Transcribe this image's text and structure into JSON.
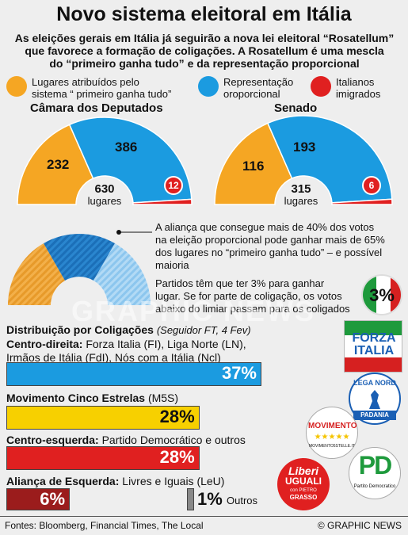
{
  "title": "Novo sistema eleitoral em Itália",
  "subtitle_lines": [
    "As eleições gerais em Itália já seguirão a nova lei eleitoral “Rosatellum”",
    "que favorece a formação de coligações. A Rosatellum é uma mescla",
    "do “primeiro ganha tudo” e da representação proporcional"
  ],
  "legend": [
    {
      "line1": "Lugares atribuídos pelo",
      "line2": "sistema “ primeiro ganha tudo”",
      "color": "#f5a623"
    },
    {
      "line1": "Representação",
      "line2": "oroporcional",
      "color": "#1b9be0"
    },
    {
      "line1": "Italianos",
      "line2": "imigrados",
      "color": "#e02020"
    }
  ],
  "chart_data": [
    {
      "type": "pie",
      "title": "Câmara dos Deputados",
      "categories": [
        "Lugares atribuídos pelo sistema “ primeiro ganha tudo”",
        "Representação oroporcional",
        "Italianos imigrados"
      ],
      "values": [
        232,
        386,
        12
      ],
      "total": "630",
      "total_unit": "lugares"
    },
    {
      "type": "pie",
      "title": "Senado",
      "categories": [
        "Lugares atribuídos pelo sistema “ primeiro ganha tudo”",
        "Representação oroporcional",
        "Italianos imigrados"
      ],
      "values": [
        116,
        193,
        6
      ],
      "total": "315",
      "total_unit": "lugares"
    },
    {
      "type": "bar",
      "title": "Distribuição por Coligações",
      "source": "(Seguidor FT, 4 Fev)",
      "categories": [
        "Centro-direita",
        "Movimento Cinco Estrelas",
        "Centro-esquerda",
        "Aliança de Esquerda",
        "Outros"
      ],
      "values": [
        37,
        28,
        28,
        6,
        1
      ],
      "value_labels": [
        "37%",
        "28%",
        "28%",
        "6%",
        "1%"
      ],
      "colors": [
        "#1b9be0",
        "#f7d000",
        "#e02020",
        "#9b1c1c",
        "#888888"
      ]
    }
  ],
  "notes": {
    "note1_lines": [
      "A aliança que consegue mais de 40% dos votos",
      "na eleição proporcional pode ganhar mais de 65%",
      "dos lugares no “primeiro ganha tudo” – e possível",
      "maioria"
    ],
    "note2_lines": [
      "Partidos têm que ter 3% para ganhar",
      "lugar. Se for parte de coligação, os votos",
      "abaixo do limiar passam para os coligados"
    ],
    "threshold_badge": "3%"
  },
  "coalitions": {
    "heading": "Distribuição por Coligações",
    "source": "(Seguidor FT, 4 Fev)",
    "centro_direita": {
      "name": "Centro-direita:",
      "line1_rest": "Forza Italia (FI), Liga Norte (LN),",
      "line2": "Irmãos de Itália (FdI), Nós com a Itália (Ncl)"
    },
    "m5s": {
      "name": "Movimento Cinco Estrelas",
      "rest": "(M5S)"
    },
    "centro_esquerda": {
      "name": "Centro-esquerda:",
      "rest": "Partido Democrático e outros"
    },
    "alianca": {
      "name": "Aliança de Esquerda:",
      "rest": "Livres e Iguais (LeU)"
    },
    "outros_label": "Outros"
  },
  "logos": {
    "forza_italia": [
      "FORZA",
      "ITALIA"
    ],
    "lega_nord": [
      "LEGA NORD",
      "PADANIA"
    ],
    "movimento": [
      "MOVIMENTO",
      "MOVIMENTO5STELLE.IT"
    ],
    "pd": [
      "PD",
      "Partito Democratico"
    ],
    "liberi_uguali": [
      "Liberi",
      "UGUALI",
      "con PIETRO",
      "GRASSO"
    ]
  },
  "footer": {
    "sources": "Fontes: Bloomberg, Financial Times, The Local",
    "credit": "© GRAPHIC NEWS"
  },
  "watermark": "GRAPHIC NEWS"
}
